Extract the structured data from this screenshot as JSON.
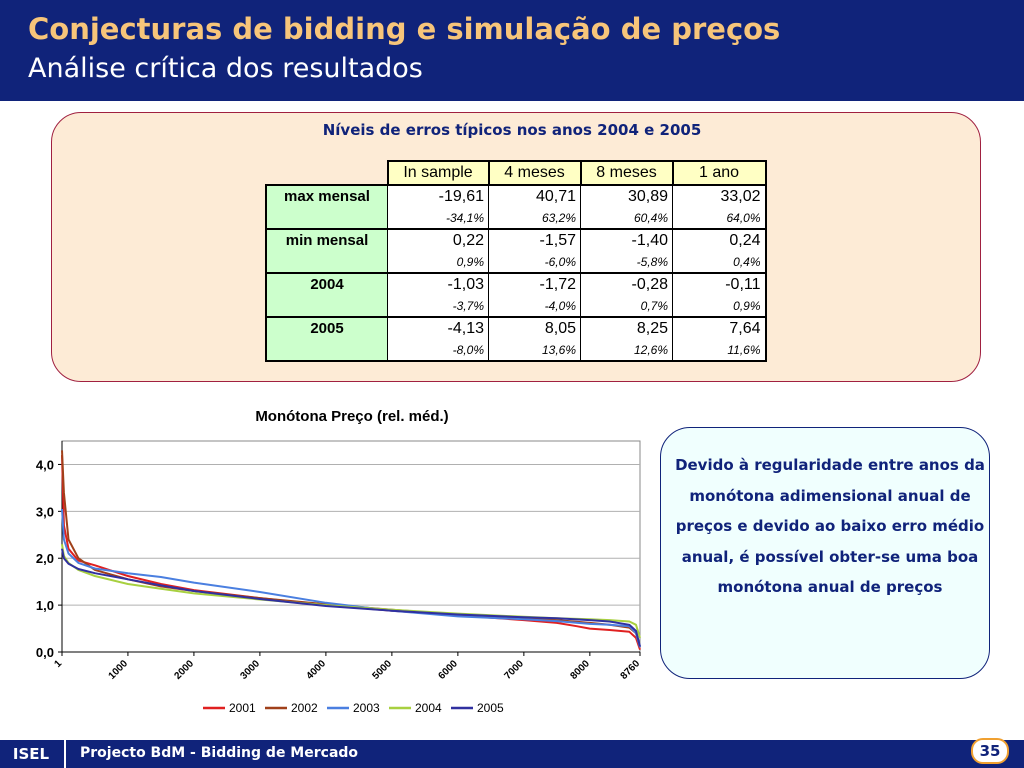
{
  "slide": {
    "title": "Conjecturas de bidding e simulação de preços",
    "subtitle": "Análise crítica dos resultados",
    "table_title": "Níveis de erros típicos nos anos 2004 e 2005",
    "note": "Devido à regularidade entre anos da monótona adimensional anual de preços e devido ao baixo erro médio anual, é possível obter-se uma boa monótona anual de preços",
    "footer_logo": "ISEL",
    "footer_text": "Projecto BdM - Bidding de Mercado",
    "page_number": "35"
  },
  "table": {
    "columns": [
      "In sample",
      "4 meses",
      "8 meses",
      "1 ano"
    ],
    "rows": [
      {
        "label": "max mensal",
        "values": [
          "-19,61",
          "40,71",
          "30,89",
          "33,02"
        ],
        "percents": [
          "-34,1%",
          "63,2%",
          "60,4%",
          "64,0%"
        ]
      },
      {
        "label": "min mensal",
        "values": [
          "0,22",
          "-1,57",
          "-1,40",
          "0,24"
        ],
        "percents": [
          "0,9%",
          "-6,0%",
          "-5,8%",
          "0,4%"
        ]
      },
      {
        "label": "2004",
        "values": [
          "-1,03",
          "-1,72",
          "-0,28",
          "-0,11"
        ],
        "percents": [
          "-3,7%",
          "-4,0%",
          "0,7%",
          "0,9%"
        ]
      },
      {
        "label": "2005",
        "values": [
          "-4,13",
          "8,05",
          "8,25",
          "7,64"
        ],
        "percents": [
          "-8,0%",
          "13,6%",
          "12,6%",
          "11,6%"
        ]
      }
    ]
  },
  "chart_data": {
    "type": "line",
    "title": "Monótona Preço (rel. méd.)",
    "xlabel": "",
    "ylabel": "",
    "xlim": [
      1,
      8760
    ],
    "ylim": [
      0,
      4.5
    ],
    "yticks": [
      "0,0",
      "1,0",
      "2,0",
      "3,0",
      "4,0"
    ],
    "ytick_values": [
      0,
      1,
      2,
      3,
      4
    ],
    "xticks": [
      "1",
      "1000",
      "2000",
      "3000",
      "4000",
      "5000",
      "6000",
      "7000",
      "8000",
      "8760"
    ],
    "xtick_values": [
      1,
      1000,
      2000,
      3000,
      4000,
      5000,
      6000,
      7000,
      8000,
      8760
    ],
    "grid": true,
    "legend": "bottom",
    "series": [
      {
        "name": "2001",
        "color": "#e02020",
        "x": [
          1,
          30,
          100,
          250,
          500,
          1000,
          1500,
          2000,
          3000,
          4000,
          5000,
          6000,
          7000,
          7500,
          7800,
          8000,
          8300,
          8600,
          8700,
          8760
        ],
        "y": [
          4.2,
          2.7,
          2.2,
          1.95,
          1.85,
          1.62,
          1.45,
          1.32,
          1.15,
          1.0,
          0.88,
          0.78,
          0.68,
          0.62,
          0.55,
          0.5,
          0.47,
          0.43,
          0.3,
          0.05
        ]
      },
      {
        "name": "2002",
        "color": "#a0401a",
        "x": [
          1,
          30,
          100,
          250,
          500,
          1000,
          1500,
          2000,
          3000,
          4000,
          5000,
          6000,
          7000,
          7500,
          8000,
          8300,
          8600,
          8700,
          8760
        ],
        "y": [
          4.3,
          3.4,
          2.4,
          2.0,
          1.75,
          1.55,
          1.4,
          1.3,
          1.15,
          1.02,
          0.9,
          0.8,
          0.72,
          0.68,
          0.62,
          0.58,
          0.52,
          0.4,
          0.1
        ]
      },
      {
        "name": "2003",
        "color": "#4a7fe0",
        "x": [
          1,
          30,
          100,
          250,
          500,
          1000,
          1500,
          2000,
          3000,
          4000,
          5000,
          6000,
          7000,
          7500,
          8000,
          8300,
          8600,
          8700,
          8760
        ],
        "y": [
          3.05,
          2.4,
          2.1,
          1.9,
          1.78,
          1.68,
          1.6,
          1.48,
          1.28,
          1.05,
          0.88,
          0.76,
          0.7,
          0.66,
          0.6,
          0.58,
          0.55,
          0.4,
          0.1
        ]
      },
      {
        "name": "2004",
        "color": "#a8d040",
        "x": [
          1,
          30,
          100,
          250,
          500,
          1000,
          1500,
          2000,
          3000,
          4000,
          5000,
          6000,
          7000,
          7500,
          8000,
          8300,
          8600,
          8700,
          8760
        ],
        "y": [
          2.3,
          2.05,
          1.9,
          1.75,
          1.62,
          1.45,
          1.35,
          1.25,
          1.12,
          1.0,
          0.9,
          0.82,
          0.75,
          0.72,
          0.7,
          0.68,
          0.65,
          0.58,
          0.3
        ]
      },
      {
        "name": "2005",
        "color": "#3030a0",
        "x": [
          1,
          30,
          100,
          250,
          500,
          1000,
          1500,
          2000,
          3000,
          4000,
          5000,
          6000,
          7000,
          7500,
          8000,
          8300,
          8600,
          8700,
          8760
        ],
        "y": [
          2.2,
          2.0,
          1.88,
          1.77,
          1.68,
          1.55,
          1.42,
          1.3,
          1.13,
          0.98,
          0.88,
          0.8,
          0.74,
          0.72,
          0.68,
          0.65,
          0.58,
          0.45,
          0.12
        ]
      }
    ]
  }
}
